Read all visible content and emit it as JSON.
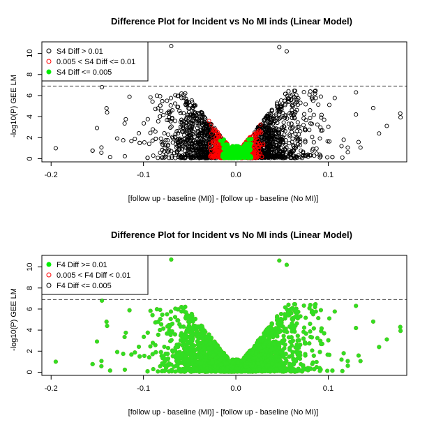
{
  "chart_data": [
    {
      "type": "scatter",
      "title": "Difference Plot for Incident vs No MI inds (Linear Model)",
      "xlabel": "[follow up - baseline (MI)] -  [follow up - baseline (No MI)]",
      "ylabel": "-log10(P) GEE LM",
      "xlim": [
        -0.21,
        0.185
      ],
      "ylim": [
        -0.3,
        11.1
      ],
      "x_ticks": [
        "-0.2",
        "-0.1",
        "0.0",
        "0.1"
      ],
      "x_tick_values": [
        -0.2,
        -0.1,
        0.0,
        0.1
      ],
      "y_ticks": [
        "0",
        "2",
        "4",
        "6",
        "8",
        "10"
      ],
      "y_tick_values": [
        0,
        2,
        4,
        6,
        8,
        10
      ],
      "threshold_line": 6.9,
      "legend_position": "top-left",
      "series": [
        {
          "name": "S4 Diff > 0.01",
          "marker": "open-circle",
          "color": "#000000"
        },
        {
          "name": "0.005 < S4 Diff <= 0.01",
          "marker": "open-circle",
          "color": "#ff0000"
        },
        {
          "name": "S4 Diff <= 0.005",
          "marker": "filled-circle",
          "color": "#00ee00"
        }
      ],
      "notable_points": [
        {
          "x": -0.07,
          "y": 10.7
        },
        {
          "x": 0.047,
          "y": 10.6
        },
        {
          "x": 0.055,
          "y": 10.2
        },
        {
          "x": -0.145,
          "y": 6.8
        },
        {
          "x": -0.195,
          "y": 1.0
        },
        {
          "x": 0.178,
          "y": 4.3
        },
        {
          "x": 0.155,
          "y": 2.4
        },
        {
          "x": 0.13,
          "y": 4.2
        },
        {
          "x": -0.14,
          "y": 4.8
        }
      ]
    },
    {
      "type": "scatter",
      "title": "Difference Plot for Incident vs No MI inds (Linear Model)",
      "xlabel": "[follow up - baseline (MI)] -  [follow up - baseline (No MI)]",
      "ylabel": "-log10(P) GEE LM",
      "xlim": [
        -0.21,
        0.185
      ],
      "ylim": [
        -0.3,
        11.1
      ],
      "x_ticks": [
        "-0.2",
        "-0.1",
        "0.0",
        "0.1"
      ],
      "x_tick_values": [
        -0.2,
        -0.1,
        0.0,
        0.1
      ],
      "y_ticks": [
        "0",
        "2",
        "4",
        "6",
        "8",
        "10"
      ],
      "y_tick_values": [
        0,
        2,
        4,
        6,
        8,
        10
      ],
      "threshold_line": 6.9,
      "legend_position": "top-left",
      "series": [
        {
          "name": "F4 Diff >= 0.01",
          "marker": "filled-circle",
          "color": "#00ee00"
        },
        {
          "name": "0.005 < F4 Diff < 0.01",
          "marker": "open-circle",
          "color": "#ff0000"
        },
        {
          "name": "F4 Diff <= 0.005",
          "marker": "open-circle",
          "color": "#000000"
        }
      ],
      "notable_points": [
        {
          "x": -0.07,
          "y": 10.7
        },
        {
          "x": 0.047,
          "y": 10.6
        },
        {
          "x": 0.055,
          "y": 10.2
        },
        {
          "x": -0.145,
          "y": 6.8
        },
        {
          "x": -0.195,
          "y": 1.0
        },
        {
          "x": 0.178,
          "y": 4.3
        },
        {
          "x": 0.155,
          "y": 2.4
        },
        {
          "x": 0.13,
          "y": 4.2
        },
        {
          "x": -0.14,
          "y": 4.8
        }
      ]
    }
  ]
}
